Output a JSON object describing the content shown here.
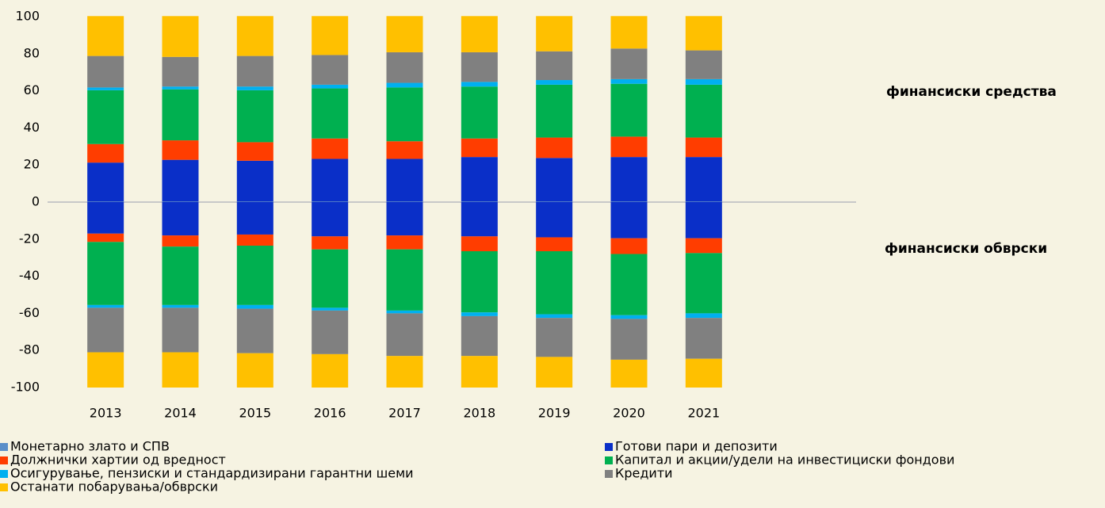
{
  "chart_data": {
    "type": "bar",
    "stacked": true,
    "categories": [
      "2013",
      "2014",
      "2015",
      "2016",
      "2017",
      "2018",
      "2019",
      "2020",
      "2021"
    ],
    "annotations": [
      "финансиски средства",
      "финансиски обврски"
    ],
    "ylim": [
      -100,
      100
    ],
    "yticks": [
      100,
      80,
      60,
      40,
      20,
      0,
      -20,
      -40,
      -60,
      -80,
      -100
    ],
    "grid": false,
    "series": [
      {
        "name": "Монетарно злато и СПВ",
        "color": "#5b8fc9",
        "values": [
          0.3,
          0.3,
          0.3,
          0.3,
          0.3,
          0.3,
          0.3,
          0.3,
          0.3
        ],
        "liabilities": [
          0,
          0,
          0,
          0,
          0,
          0,
          0,
          0,
          0
        ]
      },
      {
        "name": "Готови пари и депозити",
        "color": "#0a2fc8",
        "values": [
          21,
          22.5,
          22,
          23,
          23,
          24,
          23.5,
          24,
          24
        ],
        "liabilities": [
          -17,
          -18,
          -17.5,
          -18.5,
          -18,
          -18.5,
          -19,
          -19.5,
          -19.5
        ]
      },
      {
        "name": "Должнички хартии од вредност",
        "color": "#ff3d00",
        "values": [
          10,
          10.5,
          10,
          11,
          9.5,
          10,
          11,
          11,
          10.5
        ],
        "liabilities": [
          -4.5,
          -6,
          -6,
          -7,
          -7.5,
          -8,
          -7.5,
          -8.5,
          -8
        ]
      },
      {
        "name": "Капитал и акции/удели на инвестициски фондови",
        "color": "#00b050",
        "values": [
          29,
          27.5,
          28,
          27,
          29,
          28,
          28.5,
          28.5,
          28.5
        ],
        "liabilities": [
          -34,
          -31.5,
          -32,
          -31.5,
          -33,
          -33,
          -34,
          -33,
          -32.5
        ]
      },
      {
        "name": "Осигурување, пензиски и стандардизирани гарантни шеми",
        "color": "#00b0f0",
        "values": [
          1.5,
          1.5,
          2,
          2,
          2.5,
          2.5,
          2.5,
          2.5,
          3
        ],
        "liabilities": [
          -1.5,
          -1.5,
          -2,
          -1.5,
          -1.5,
          -2,
          -2,
          -2,
          -2.5
        ]
      },
      {
        "name": "Кредити",
        "color": "#808080",
        "values": [
          17,
          16,
          16.5,
          16,
          16.5,
          16,
          15.5,
          16.5,
          15.5
        ],
        "liabilities": [
          -24,
          -24,
          -24,
          -23.5,
          -23,
          -21.5,
          -21,
          -22,
          -22
        ]
      },
      {
        "name": "Останати побарувања/обврски",
        "color": "#ffc000",
        "values": [
          21.5,
          22,
          21.5,
          21,
          19.5,
          19.5,
          19,
          17.5,
          18.5
        ],
        "liabilities": [
          -19,
          -19,
          -18.5,
          -18,
          -17,
          -17,
          -16.5,
          -15,
          -15.5
        ]
      }
    ]
  }
}
